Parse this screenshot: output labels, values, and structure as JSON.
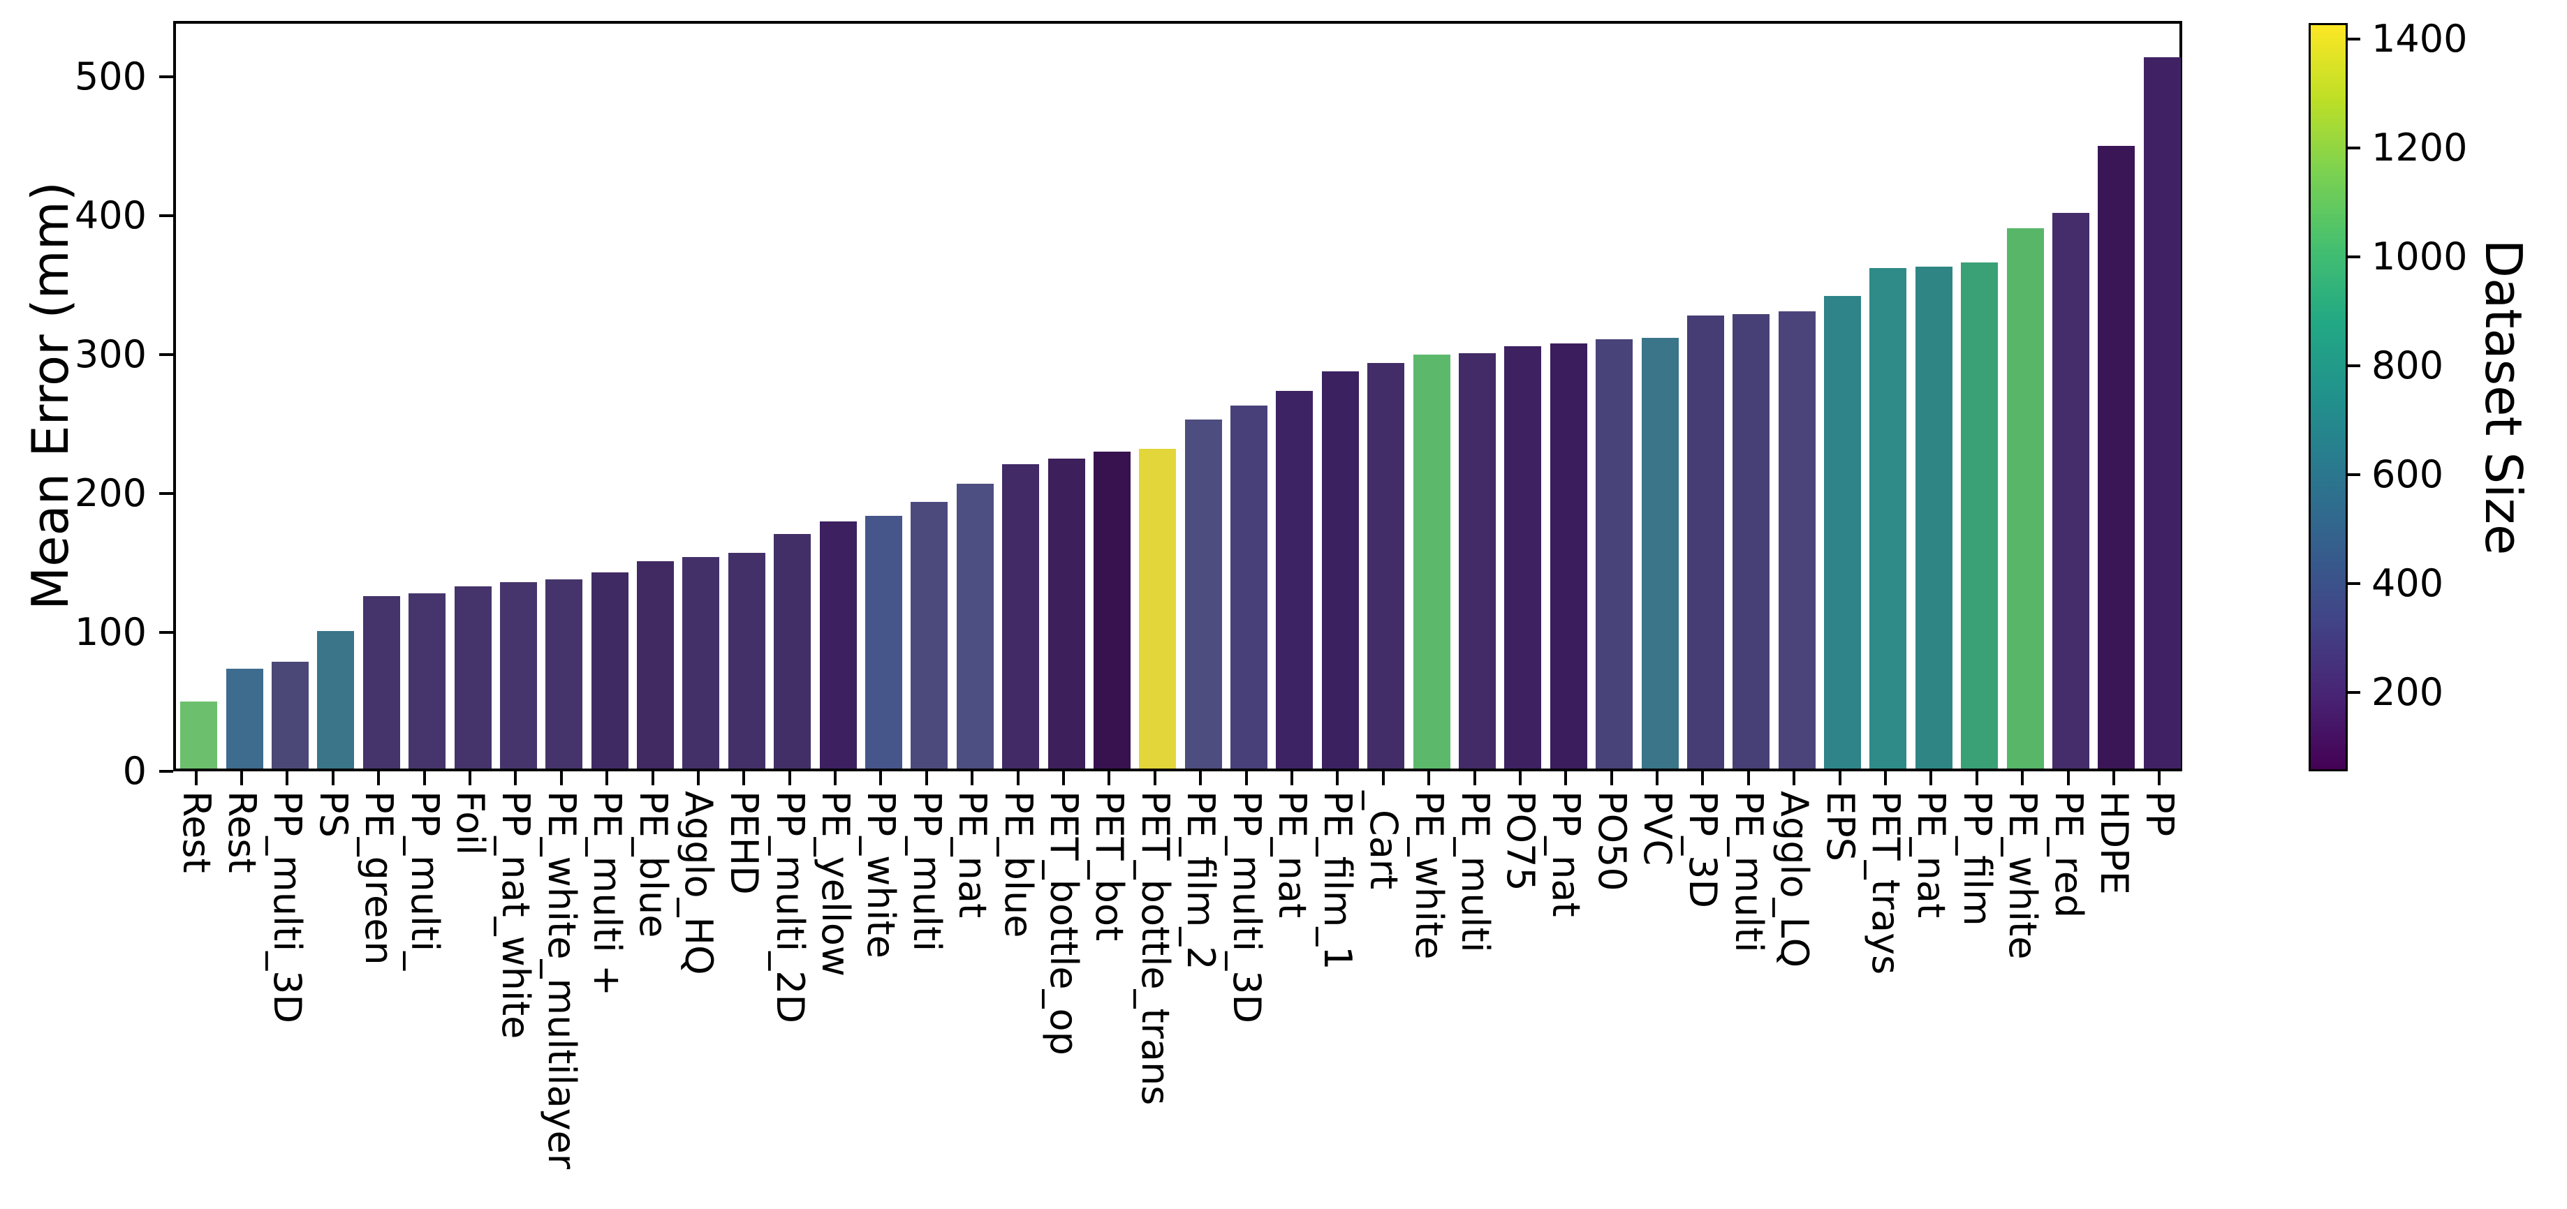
{
  "chart_data": {
    "type": "bar",
    "title": "",
    "xlabel": "",
    "ylabel": "Mean Error (mm)",
    "ylim": [
      0,
      540
    ],
    "yticks": [
      0,
      100,
      200,
      300,
      400,
      500
    ],
    "grid": false,
    "legend": "none",
    "colorbar": {
      "label": "Dataset Size",
      "ticks": [
        200,
        400,
        600,
        800,
        1000,
        1200,
        1400
      ],
      "range": [
        55,
        1430
      ],
      "colormap": "viridis",
      "gradient_stops": [
        "#440154",
        "#482475",
        "#414487",
        "#355f8d",
        "#2a788e",
        "#21918c",
        "#22a884",
        "#44bf70",
        "#7ad151",
        "#bddf26",
        "#fde725"
      ]
    },
    "bars": [
      {
        "label": "Rest",
        "mean_error_mm": 48,
        "dataset_size": 1040,
        "color": "#6cbf6c"
      },
      {
        "label": "Rest",
        "mean_error_mm": 72,
        "dataset_size": 560,
        "color": "#3d6c8e"
      },
      {
        "label": "PP_multi_3D",
        "mean_error_mm": 77,
        "dataset_size": 370,
        "color": "#4b4878"
      },
      {
        "label": "PS",
        "mean_error_mm": 99,
        "dataset_size": 615,
        "color": "#3a7589"
      },
      {
        "label": "PE_green",
        "mean_error_mm": 124,
        "dataset_size": 270,
        "color": "#45336b"
      },
      {
        "label": "PP_multi_",
        "mean_error_mm": 126,
        "dataset_size": 270,
        "color": "#46356c"
      },
      {
        "label": "Foil",
        "mean_error_mm": 131,
        "dataset_size": 265,
        "color": "#45336b"
      },
      {
        "label": "PP_nat_white",
        "mean_error_mm": 134,
        "dataset_size": 270,
        "color": "#46356c"
      },
      {
        "label": "PE_white_multilayer",
        "mean_error_mm": 136,
        "dataset_size": 265,
        "color": "#45346b"
      },
      {
        "label": "PE_multi +",
        "mean_error_mm": 141,
        "dataset_size": 200,
        "color": "#402a64"
      },
      {
        "label": "PE_blue",
        "mean_error_mm": 149,
        "dataset_size": 190,
        "color": "#412962"
      },
      {
        "label": "Agglo_HQ",
        "mean_error_mm": 152,
        "dataset_size": 225,
        "color": "#443069"
      },
      {
        "label": "PEHD",
        "mean_error_mm": 155,
        "dataset_size": 225,
        "color": "#443069"
      },
      {
        "label": "PP_multi_2D",
        "mean_error_mm": 169,
        "dataset_size": 220,
        "color": "#432f67"
      },
      {
        "label": "PE_yellow",
        "mean_error_mm": 178,
        "dataset_size": 140,
        "color": "#3c2060"
      },
      {
        "label": "PP_white",
        "mean_error_mm": 182,
        "dataset_size": 465,
        "color": "#46568b"
      },
      {
        "label": "PP_multi",
        "mean_error_mm": 192,
        "dataset_size": 380,
        "color": "#4c4a7d"
      },
      {
        "label": "PE_nat",
        "mean_error_mm": 205,
        "dataset_size": 410,
        "color": "#4d4e81"
      },
      {
        "label": "PE_blue",
        "mean_error_mm": 219,
        "dataset_size": 200,
        "color": "#412a65"
      },
      {
        "label": "PET_bottle_op",
        "mean_error_mm": 223,
        "dataset_size": 130,
        "color": "#3d1f5b"
      },
      {
        "label": "PET_bot",
        "mean_error_mm": 228,
        "dataset_size": 80,
        "color": "#38114f"
      },
      {
        "label": "PET_bottle_trans",
        "mean_error_mm": 230,
        "dataset_size": 1335,
        "color": "#e2d63a"
      },
      {
        "label": "PE_film_2",
        "mean_error_mm": 251,
        "dataset_size": 405,
        "color": "#4d4d80"
      },
      {
        "label": "PP_multi_3D",
        "mean_error_mm": 261,
        "dataset_size": 355,
        "color": "#474079"
      },
      {
        "label": "PE_nat",
        "mean_error_mm": 272,
        "dataset_size": 160,
        "color": "#3d2363"
      },
      {
        "label": "PE_film_1",
        "mean_error_mm": 286,
        "dataset_size": 150,
        "color": "#3c2161"
      },
      {
        "label": "_Cart",
        "mean_error_mm": 292,
        "dataset_size": 240,
        "color": "#432d68"
      },
      {
        "label": "PE_white",
        "mean_error_mm": 298,
        "dataset_size": 1015,
        "color": "#5cb96b"
      },
      {
        "label": "PE_multi",
        "mean_error_mm": 299,
        "dataset_size": 215,
        "color": "#422b66"
      },
      {
        "label": "PO75",
        "mean_error_mm": 304,
        "dataset_size": 150,
        "color": "#3d2161"
      },
      {
        "label": "PP_nat",
        "mean_error_mm": 306,
        "dataset_size": 120,
        "color": "#3b1c5c"
      },
      {
        "label": "PO50",
        "mean_error_mm": 309,
        "dataset_size": 340,
        "color": "#484378"
      },
      {
        "label": "PVC",
        "mean_error_mm": 310,
        "dataset_size": 630,
        "color": "#3a758a"
      },
      {
        "label": "PP_3D",
        "mean_error_mm": 326,
        "dataset_size": 300,
        "color": "#463d74"
      },
      {
        "label": "PE_multi",
        "mean_error_mm": 327,
        "dataset_size": 310,
        "color": "#474076"
      },
      {
        "label": "Agglo_LQ",
        "mean_error_mm": 329,
        "dataset_size": 340,
        "color": "#4a447b"
      },
      {
        "label": "EPS",
        "mean_error_mm": 340,
        "dataset_size": 710,
        "color": "#2f8489"
      },
      {
        "label": "PET_trays",
        "mean_error_mm": 360,
        "dataset_size": 770,
        "color": "#2f8b87"
      },
      {
        "label": "PE_nat",
        "mean_error_mm": 361,
        "dataset_size": 740,
        "color": "#2f8584"
      },
      {
        "label": "PP_film",
        "mean_error_mm": 364,
        "dataset_size": 905,
        "color": "#3aa076"
      },
      {
        "label": "PE_white",
        "mean_error_mm": 389,
        "dataset_size": 1000,
        "color": "#58b668"
      },
      {
        "label": "PE_red",
        "mean_error_mm": 400,
        "dataset_size": 230,
        "color": "#442d6a"
      },
      {
        "label": "HDPE",
        "mean_error_mm": 448,
        "dataset_size": 90,
        "color": "#3a1656"
      },
      {
        "label": "PP",
        "mean_error_mm": 512,
        "dataset_size": 190,
        "color": "#402264"
      }
    ]
  }
}
